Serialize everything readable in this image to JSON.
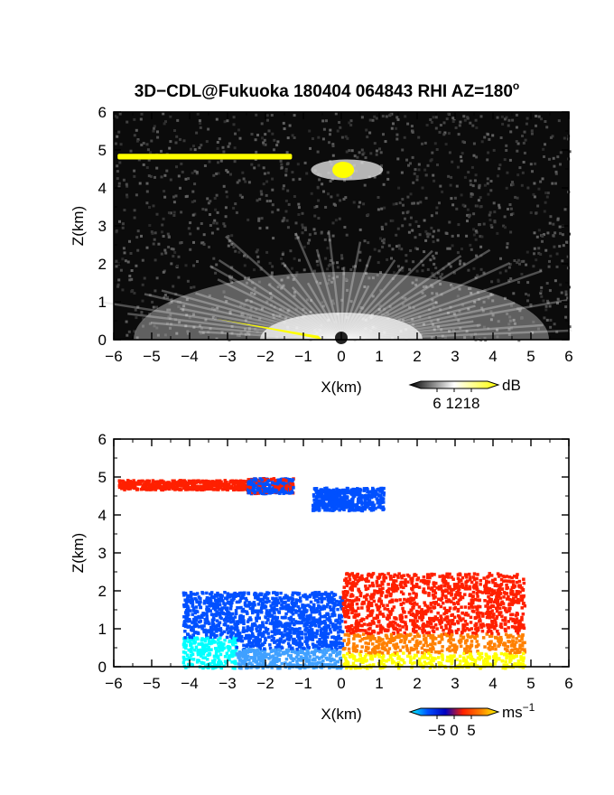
{
  "title_main": "3D−CDL@Fukuoka 180404 064843 RHI AZ=180",
  "title_degree": "o",
  "chart_data": [
    {
      "type": "heatmap",
      "panel": "reflectivity",
      "xlabel": "X(km)",
      "ylabel": "Z(km)",
      "xlim": [
        -6,
        6
      ],
      "ylim": [
        0,
        6
      ],
      "xticks": [
        "−6",
        "−5",
        "−4",
        "−3",
        "−2",
        "−1",
        "0",
        "1",
        "2",
        "3",
        "4",
        "5",
        "6"
      ],
      "yticks": [
        "0",
        "1",
        "2",
        "3",
        "4",
        "5",
        "6"
      ],
      "background": "noise (black/gray)",
      "features": [
        {
          "name": "upper layer",
          "x": [
            -5.9,
            -1.3
          ],
          "z": [
            4.75,
            4.9
          ],
          "value_dB": 18
        },
        {
          "name": "echo near 4.5 km",
          "x": [
            -0.8,
            1.1
          ],
          "z": [
            4.2,
            4.75
          ],
          "value_dB": 18
        },
        {
          "name": "ground fan",
          "x": [
            -6,
            6
          ],
          "z": [
            0,
            1.9
          ],
          "value_dB": 12
        }
      ],
      "colorbar": {
        "unit": "dB",
        "ticks": [
          "6",
          "12",
          "18"
        ],
        "range": [
          0,
          20
        ],
        "colors": [
          "#000000",
          "#ffffff",
          "#ffff00"
        ]
      }
    },
    {
      "type": "heatmap",
      "panel": "doppler_velocity",
      "xlabel": "X(km)",
      "ylabel": "Z(km)",
      "xlim": [
        -6,
        6
      ],
      "ylim": [
        0,
        6
      ],
      "xticks": [
        "−6",
        "−5",
        "−4",
        "−3",
        "−2",
        "−1",
        "0",
        "1",
        "2",
        "3",
        "4",
        "5",
        "6"
      ],
      "yticks": [
        "0",
        "1",
        "2",
        "3",
        "4",
        "5",
        "6"
      ],
      "features": [
        {
          "name": "upper layer west",
          "x": [
            -5.9,
            -2.5
          ],
          "z": [
            4.7,
            4.95
          ],
          "value_ms": 3
        },
        {
          "name": "upper layer east",
          "x": [
            -2.5,
            -1.3
          ],
          "z": [
            4.6,
            5.0
          ],
          "value_ms": -3
        },
        {
          "name": "echo near 4.5 km",
          "x": [
            -0.8,
            1.1
          ],
          "z": [
            4.15,
            4.75
          ],
          "value_ms": -4
        },
        {
          "name": "low-level west",
          "x": [
            -4.2,
            0
          ],
          "z": [
            0,
            2.0
          ],
          "value_ms": -4
        },
        {
          "name": "low-level east",
          "x": [
            0,
            4.8
          ],
          "z": [
            0,
            2.5
          ],
          "value_ms": 3
        }
      ],
      "colorbar": {
        "unit_base": "ms",
        "unit_exp": "−1",
        "ticks": [
          "−5",
          "0",
          "5"
        ],
        "range": [
          -6,
          6
        ],
        "colors": [
          "#00ffff",
          "#0050ff",
          "#0000c0",
          "#ff2000",
          "#ff8000",
          "#ffff00"
        ]
      }
    }
  ]
}
